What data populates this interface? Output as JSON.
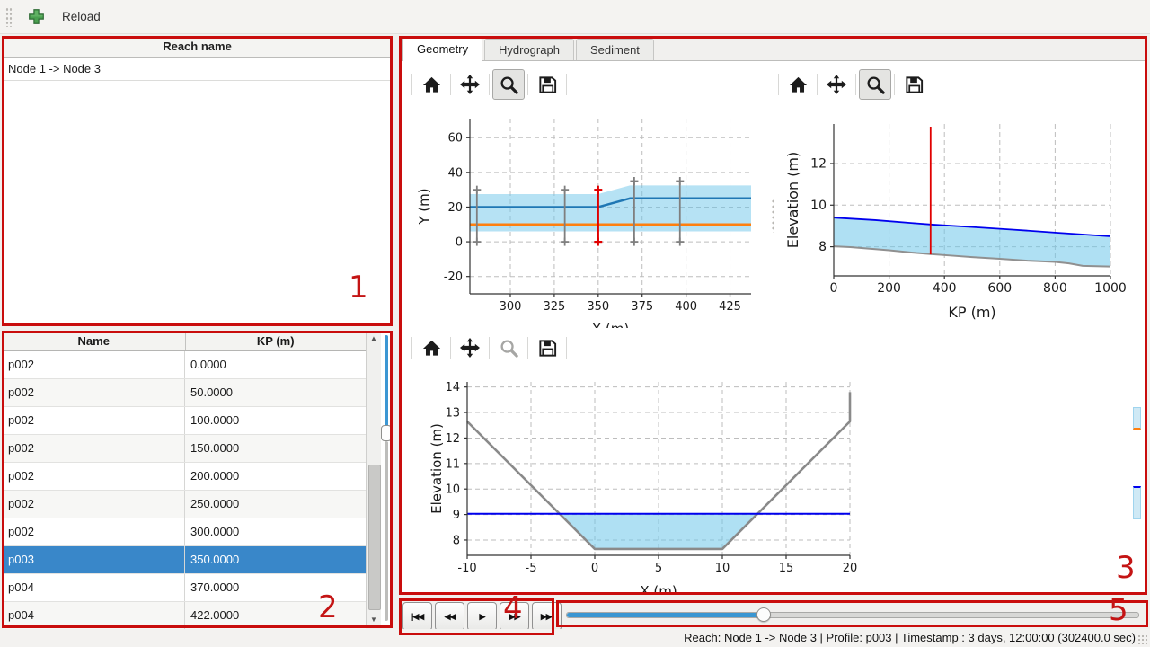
{
  "topbar": {
    "reload_label": "Reload"
  },
  "reach_panel": {
    "header": "Reach name",
    "items": [
      "Node 1 -> Node 3"
    ]
  },
  "profile_table": {
    "columns": [
      "Name",
      "KP (m)"
    ],
    "rows": [
      [
        "p002",
        "0.0000"
      ],
      [
        "p002",
        "50.0000"
      ],
      [
        "p002",
        "100.0000"
      ],
      [
        "p002",
        "150.0000"
      ],
      [
        "p002",
        "200.0000"
      ],
      [
        "p002",
        "250.0000"
      ],
      [
        "p002",
        "300.0000"
      ],
      [
        "p003",
        "350.0000"
      ],
      [
        "p004",
        "370.0000"
      ],
      [
        "p004",
        "422.0000"
      ]
    ],
    "selected_index": 7
  },
  "tabs": {
    "items": [
      "Geometry",
      "Hydrograph",
      "Sediment"
    ],
    "active": "Geometry"
  },
  "toolbars": {
    "icons": [
      "home",
      "pan",
      "zoom",
      "save"
    ]
  },
  "playback": {
    "skip_start": "|◀◀",
    "rewind": "◀◀",
    "play": "▶",
    "fast_forward": "▶▶",
    "skip_end": "▶▶|"
  },
  "time_slider": {
    "fraction": 0.344
  },
  "status_bar": {
    "text": "Reach: Node 1 -> Node 3 | Profile: p003 | Timestamp : 3 days, 12:00:00 (302400.0 sec)"
  },
  "annotations": {
    "labels": [
      "1",
      "2",
      "3",
      "4",
      "5"
    ]
  },
  "colors": {
    "selection": "#3987c9",
    "slider_blue": "#3a96d2",
    "annotation_red": "#c90d0d"
  },
  "chart_data": [
    {
      "id": "plan_view",
      "type": "line",
      "xlabel": "X (m)",
      "ylabel": "Y (m)",
      "xlim": [
        277,
        437
      ],
      "ylim": [
        -30,
        71
      ],
      "xticks": [
        300,
        325,
        350,
        375,
        400,
        425
      ],
      "yticks": [
        -20,
        0,
        20,
        40,
        60
      ],
      "grid": true,
      "fills": [
        {
          "name": "channel-band",
          "color": "#6ec6ea",
          "opacity": 0.5,
          "points": [
            [
              277,
              6
            ],
            [
              437,
              6
            ],
            [
              437,
              32.5
            ],
            [
              368,
              32.5
            ],
            [
              350,
              27.5
            ],
            [
              277,
              27.5
            ]
          ]
        }
      ],
      "lines": [
        {
          "name": "bank-line",
          "color": "#1f77b4",
          "width": 2.5,
          "points": [
            [
              277,
              20
            ],
            [
              350,
              20
            ],
            [
              368,
              25
            ],
            [
              437,
              25
            ]
          ]
        },
        {
          "name": "centerline",
          "color": "#ff7f0e",
          "width": 2.5,
          "points": [
            [
              277,
              10
            ],
            [
              437,
              10
            ]
          ]
        }
      ],
      "vlines": [
        {
          "name": "profile-marker",
          "x": 281,
          "y": [
            0,
            30
          ],
          "color": "#7f7f7f",
          "width": 1.8,
          "caps": true
        },
        {
          "name": "profile-marker",
          "x": 331,
          "y": [
            0,
            30
          ],
          "color": "#7f7f7f",
          "width": 1.8,
          "caps": true
        },
        {
          "name": "profile-marker",
          "x": 370.5,
          "y": [
            0,
            35
          ],
          "color": "#7f7f7f",
          "width": 1.8,
          "caps": true
        },
        {
          "name": "profile-marker",
          "x": 396.5,
          "y": [
            0,
            35
          ],
          "color": "#7f7f7f",
          "width": 1.8,
          "caps": true
        },
        {
          "name": "active-profile-marker",
          "x": 350,
          "y": [
            0,
            30
          ],
          "color": "#e00000",
          "width": 2.2,
          "caps": true
        }
      ]
    },
    {
      "id": "long_profile",
      "type": "line",
      "xlabel": "KP (m)",
      "ylabel": "Elevation (m)",
      "xlim": [
        0,
        1000
      ],
      "ylim": [
        6.6,
        13.9
      ],
      "xticks": [
        0,
        200,
        400,
        600,
        800,
        1000
      ],
      "yticks": [
        8,
        10,
        12
      ],
      "grid": true,
      "fills": [
        {
          "name": "water-body",
          "color": "#6ec6ea",
          "opacity": 0.55,
          "points": [
            [
              0,
              9.4
            ],
            [
              150,
              9.28
            ],
            [
              300,
              9.12
            ],
            [
              350,
              9.07
            ],
            [
              500,
              8.95
            ],
            [
              650,
              8.82
            ],
            [
              800,
              8.68
            ],
            [
              1000,
              8.5
            ],
            [
              1000,
              7.05
            ],
            [
              900,
              7.08
            ],
            [
              850,
              7.2
            ],
            [
              800,
              7.27
            ],
            [
              700,
              7.33
            ],
            [
              600,
              7.42
            ],
            [
              500,
              7.5
            ],
            [
              420,
              7.58
            ],
            [
              350,
              7.65
            ],
            [
              300,
              7.7
            ],
            [
              200,
              7.83
            ],
            [
              120,
              7.92
            ],
            [
              60,
              7.98
            ],
            [
              0,
              8.02
            ]
          ]
        }
      ],
      "lines": [
        {
          "name": "bed-elevation",
          "color": "#909090",
          "width": 2,
          "points": [
            [
              0,
              8.02
            ],
            [
              60,
              7.98
            ],
            [
              120,
              7.92
            ],
            [
              200,
              7.83
            ],
            [
              300,
              7.7
            ],
            [
              350,
              7.65
            ],
            [
              420,
              7.58
            ],
            [
              500,
              7.5
            ],
            [
              600,
              7.42
            ],
            [
              700,
              7.33
            ],
            [
              800,
              7.27
            ],
            [
              850,
              7.2
            ],
            [
              900,
              7.08
            ],
            [
              1000,
              7.05
            ]
          ]
        },
        {
          "name": "water-surface",
          "color": "#0000ee",
          "width": 1.8,
          "points": [
            [
              0,
              9.4
            ],
            [
              150,
              9.28
            ],
            [
              300,
              9.12
            ],
            [
              350,
              9.07
            ],
            [
              500,
              8.95
            ],
            [
              650,
              8.82
            ],
            [
              800,
              8.68
            ],
            [
              1000,
              8.5
            ]
          ]
        }
      ],
      "vlines": [
        {
          "name": "active-profile-marker",
          "x": 350,
          "y": [
            7.63,
            13.77
          ],
          "color": "#e00000",
          "width": 1.8,
          "caps": false
        }
      ]
    },
    {
      "id": "cross_section",
      "type": "line",
      "xlabel": "X (m)",
      "ylabel": "Elevation (m)",
      "xlim": [
        -10,
        20
      ],
      "ylim": [
        7.4,
        14.2
      ],
      "xticks": [
        -10,
        -5,
        0,
        5,
        10,
        15,
        20
      ],
      "yticks": [
        8,
        9,
        10,
        11,
        12,
        13,
        14
      ],
      "grid": true,
      "fills": [
        {
          "name": "water-area",
          "color": "#6ec6ea",
          "opacity": 0.55,
          "points": [
            [
              -2.8,
              9.03
            ],
            [
              12.8,
              9.03
            ],
            [
              10,
              7.65
            ],
            [
              0,
              7.65
            ]
          ]
        }
      ],
      "lines": [
        {
          "name": "bed",
          "color": "#8a8a8a",
          "width": 2.6,
          "points": [
            [
              -10,
              12.65
            ],
            [
              0,
              7.65
            ],
            [
              10,
              7.65
            ],
            [
              20,
              12.65
            ],
            [
              20,
              13.8
            ]
          ]
        },
        {
          "name": "water-level",
          "color": "#0000ee",
          "width": 2,
          "points": [
            [
              -10,
              9.03
            ],
            [
              20,
              9.03
            ]
          ]
        }
      ],
      "vlines": []
    }
  ]
}
